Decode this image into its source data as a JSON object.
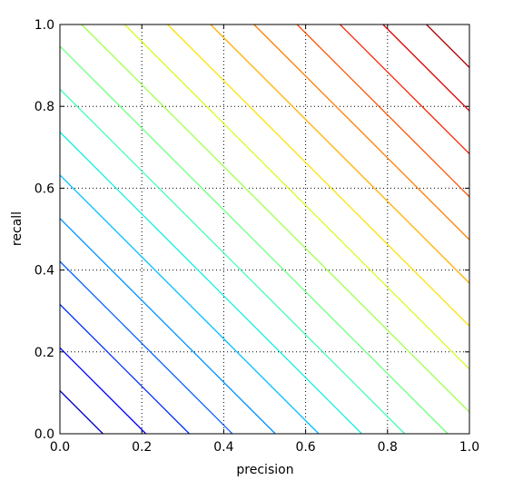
{
  "chart_data": {
    "type": "contour",
    "x_label": "precision",
    "y_label": "recall",
    "levels": [
      0.105,
      0.21,
      0.316,
      0.421,
      0.526,
      0.632,
      0.737,
      0.842,
      0.947,
      1.053,
      1.158,
      1.263,
      1.368,
      1.474,
      1.579,
      1.684,
      1.789,
      1.895
    ],
    "colors": [
      "#0000c8",
      "#0000ff",
      "#0030ff",
      "#0060ff",
      "#0090ff",
      "#00c0ff",
      "#10f0e0",
      "#40ffb0",
      "#70ff80",
      "#a0ff50",
      "#d0ff20",
      "#ffe000",
      "#ffb000",
      "#ff8000",
      "#ff5000",
      "#ff2000",
      "#e00000",
      "#b00000"
    ],
    "xlim": [
      0,
      1
    ],
    "ylim": [
      0,
      1
    ],
    "xticks": [
      {
        "value": 0,
        "label": "0.0"
      },
      {
        "value": 0.2,
        "label": "0.2"
      },
      {
        "value": 0.4,
        "label": "0.4"
      },
      {
        "value": 0.6,
        "label": "0.6"
      },
      {
        "value": 0.8,
        "label": "0.8"
      },
      {
        "value": 1,
        "label": "1.0"
      }
    ],
    "yticks": [
      {
        "value": 0,
        "label": "0.0"
      },
      {
        "value": 0.2,
        "label": "0.2"
      },
      {
        "value": 0.4,
        "label": "0.4"
      },
      {
        "value": 0.6,
        "label": "0.6"
      },
      {
        "value": 0.8,
        "label": "0.8"
      },
      {
        "value": 1,
        "label": "1.0"
      }
    ],
    "grid": true
  }
}
